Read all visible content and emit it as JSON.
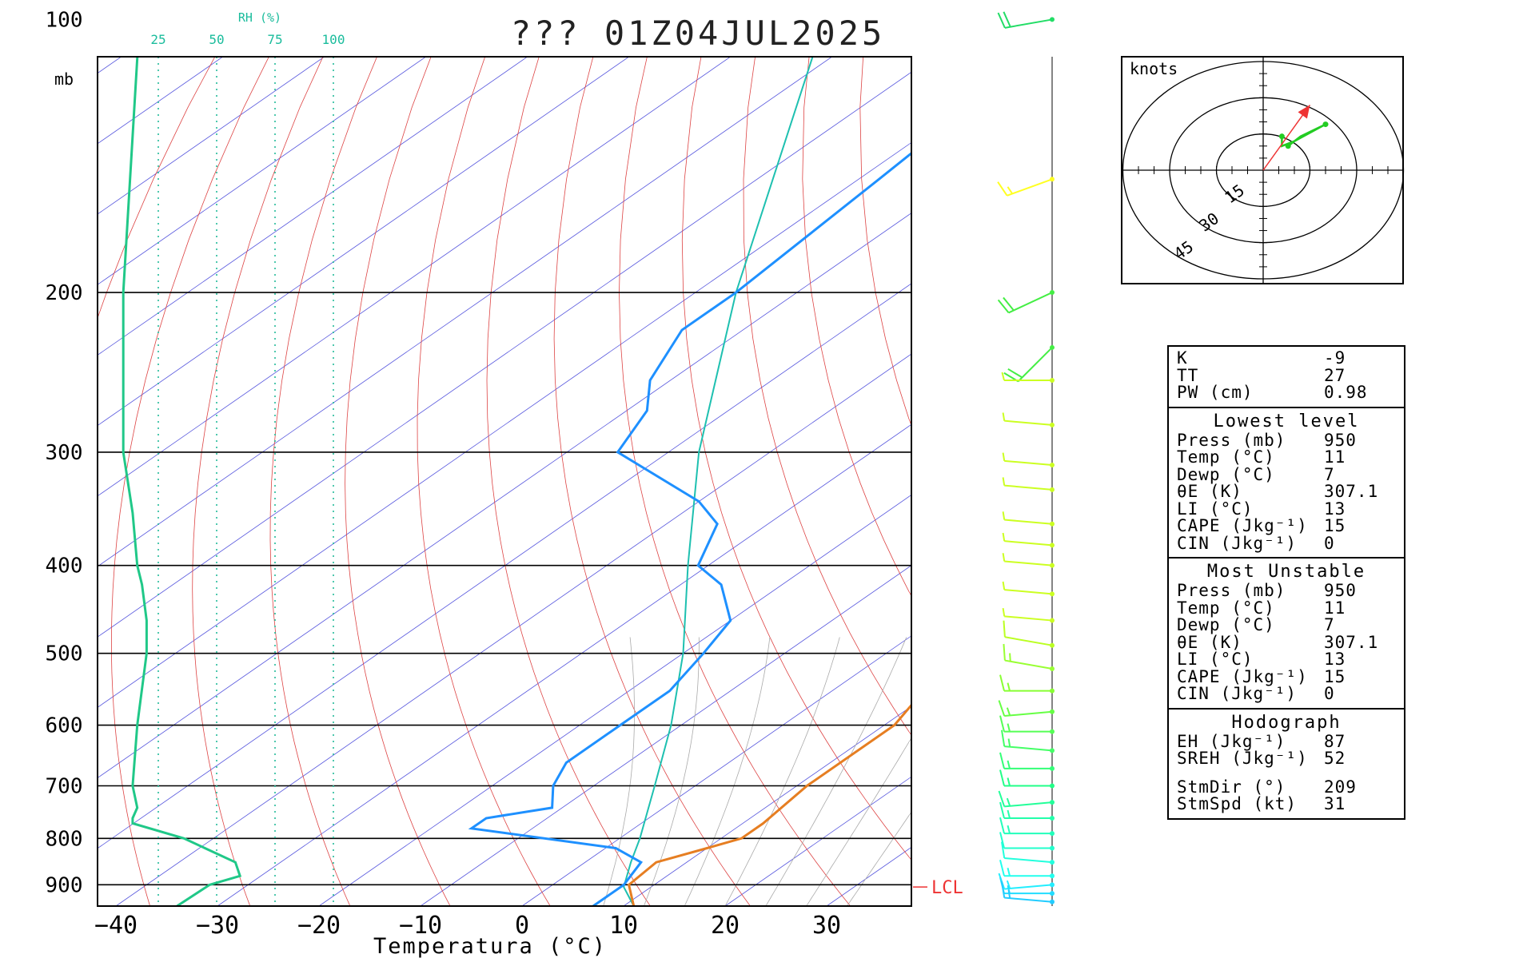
{
  "header": {
    "title": "??? 01Z04JUL2025"
  },
  "rh_scale": {
    "title": "RH (%)",
    "labels": [
      "25",
      "50",
      "75",
      "100"
    ]
  },
  "chart_data": {
    "type": "skew-t",
    "xlabel": "Temperatura (°C)",
    "pressure_unit": "mb",
    "pressure_range": [
      950,
      100
    ],
    "temperature_range": [
      -40,
      40
    ],
    "x_ticks": [
      -40,
      -30,
      -20,
      -10,
      0,
      10,
      20,
      30
    ],
    "pressure_ticks": [
      100,
      200,
      300,
      400,
      500,
      600,
      700,
      800,
      900
    ],
    "lcl_label": "LCL",
    "lcl_pressure": 905,
    "temperature_profile": [
      [
        950,
        11
      ],
      [
        900,
        7.5
      ],
      [
        850,
        7
      ],
      [
        820,
        10
      ],
      [
        800,
        12
      ],
      [
        770,
        12
      ],
      [
        700,
        11
      ],
      [
        600,
        11
      ],
      [
        550,
        9
      ],
      [
        500,
        5
      ],
      [
        450,
        -1
      ],
      [
        400,
        -8
      ],
      [
        350,
        -15
      ],
      [
        300,
        -22
      ],
      [
        270,
        -26
      ],
      [
        250,
        -31
      ],
      [
        220,
        -34
      ],
      [
        200,
        -38
      ],
      [
        150,
        -50
      ],
      [
        100,
        -63
      ]
    ],
    "dewpoint_profile": [
      [
        950,
        7
      ],
      [
        900,
        7
      ],
      [
        850,
        5.5
      ],
      [
        820,
        1
      ],
      [
        780,
        -16
      ],
      [
        760,
        -16
      ],
      [
        740,
        -11
      ],
      [
        700,
        -14
      ],
      [
        660,
        -16
      ],
      [
        600,
        -16
      ],
      [
        550,
        -16
      ],
      [
        500,
        -18
      ],
      [
        460,
        -20
      ],
      [
        420,
        -26
      ],
      [
        400,
        -31
      ],
      [
        360,
        -35
      ],
      [
        340,
        -40
      ],
      [
        300,
        -55
      ],
      [
        270,
        -58
      ],
      [
        250,
        -62
      ],
      [
        220,
        -66
      ],
      [
        200,
        -66
      ],
      [
        150,
        -68
      ],
      [
        100,
        -71
      ]
    ],
    "parcel_profile": [
      [
        950,
        11
      ],
      [
        905,
        7.3
      ],
      [
        850,
        4.5
      ],
      [
        800,
        2
      ],
      [
        700,
        -4
      ],
      [
        600,
        -11
      ],
      [
        500,
        -20
      ],
      [
        400,
        -32
      ],
      [
        300,
        -47
      ],
      [
        200,
        -66
      ],
      [
        100,
        -96
      ]
    ],
    "rh_profile": [
      [
        950,
        33
      ],
      [
        900,
        47
      ],
      [
        880,
        60
      ],
      [
        850,
        58
      ],
      [
        800,
        36
      ],
      [
        770,
        14
      ],
      [
        760,
        14
      ],
      [
        740,
        16
      ],
      [
        700,
        14
      ],
      [
        600,
        16
      ],
      [
        500,
        20
      ],
      [
        460,
        20
      ],
      [
        420,
        18
      ],
      [
        400,
        16
      ],
      [
        350,
        14
      ],
      [
        300,
        10
      ],
      [
        200,
        10
      ],
      [
        100,
        17
      ]
    ],
    "wind_profile": [
      {
        "p": 100,
        "dir": 260,
        "spd": 20,
        "color": "#22dd66"
      },
      {
        "p": 150,
        "dir": 250,
        "spd": 15,
        "color": "#ffff22"
      },
      {
        "p": 200,
        "dir": 245,
        "spd": 20,
        "color": "#44ee44"
      },
      {
        "p": 230,
        "dir": 225,
        "spd": 20,
        "color": "#44ee44"
      },
      {
        "p": 250,
        "dir": 270,
        "spd": 5,
        "color": "#ccff22"
      },
      {
        "p": 280,
        "dir": 275,
        "spd": 5,
        "color": "#ccff22"
      },
      {
        "p": 310,
        "dir": 275,
        "spd": 5,
        "color": "#ccff22"
      },
      {
        "p": 330,
        "dir": 275,
        "spd": 5,
        "color": "#ccff22"
      },
      {
        "p": 360,
        "dir": 275,
        "spd": 5,
        "color": "#ccff22"
      },
      {
        "p": 380,
        "dir": 275,
        "spd": 5,
        "color": "#ccff22"
      },
      {
        "p": 400,
        "dir": 275,
        "spd": 5,
        "color": "#ccff22"
      },
      {
        "p": 430,
        "dir": 275,
        "spd": 5,
        "color": "#ccff22"
      },
      {
        "p": 460,
        "dir": 275,
        "spd": 5,
        "color": "#ccff22"
      },
      {
        "p": 490,
        "dir": 280,
        "spd": 10,
        "color": "#bbff22"
      },
      {
        "p": 520,
        "dir": 280,
        "spd": 15,
        "color": "#99ff33"
      },
      {
        "p": 550,
        "dir": 270,
        "spd": 15,
        "color": "#88ff33"
      },
      {
        "p": 580,
        "dir": 265,
        "spd": 15,
        "color": "#66ff44"
      },
      {
        "p": 610,
        "dir": 270,
        "spd": 15,
        "color": "#55ff55"
      },
      {
        "p": 640,
        "dir": 275,
        "spd": 15,
        "color": "#44ff66"
      },
      {
        "p": 670,
        "dir": 270,
        "spd": 15,
        "color": "#33ff77"
      },
      {
        "p": 700,
        "dir": 270,
        "spd": 15,
        "color": "#22ff88"
      },
      {
        "p": 730,
        "dir": 265,
        "spd": 15,
        "color": "#22ff99"
      },
      {
        "p": 760,
        "dir": 270,
        "spd": 15,
        "color": "#22ffaa"
      },
      {
        "p": 790,
        "dir": 270,
        "spd": 15,
        "color": "#22ffbb"
      },
      {
        "p": 820,
        "dir": 270,
        "spd": 10,
        "color": "#22ffcc"
      },
      {
        "p": 850,
        "dir": 275,
        "spd": 10,
        "color": "#22ffdd"
      },
      {
        "p": 880,
        "dir": 270,
        "spd": 15,
        "color": "#22ffee"
      },
      {
        "p": 900,
        "dir": 265,
        "spd": 15,
        "color": "#22eeff"
      },
      {
        "p": 920,
        "dir": 270,
        "spd": 15,
        "color": "#22ddff"
      },
      {
        "p": 940,
        "dir": 275,
        "spd": 15,
        "color": "#22ccff"
      }
    ]
  },
  "hodograph": {
    "unit_label": "knots",
    "ring_labels": [
      "15",
      "30",
      "45"
    ],
    "ring_values": [
      15,
      30,
      45
    ],
    "trace_uv": [
      [
        8,
        10
      ],
      [
        12,
        14
      ],
      [
        20,
        19
      ],
      [
        10,
        12
      ],
      [
        6,
        10
      ],
      [
        6,
        14
      ]
    ],
    "storm_motion_uv": [
      15,
      27
    ]
  },
  "indices": {
    "top": [
      {
        "label": "K",
        "value": "-9"
      },
      {
        "label": "TT",
        "value": "27"
      },
      {
        "label": "PW (cm)",
        "value": "0.98"
      }
    ],
    "lowest_level": {
      "title": "Lowest level",
      "rows": [
        {
          "label": "Press (mb)",
          "value": "950"
        },
        {
          "label": "Temp (°C)",
          "value": "11"
        },
        {
          "label": "Dewp (°C)",
          "value": "7"
        },
        {
          "label": "θE (K)",
          "value": "307.1"
        },
        {
          "label": "LI (°C)",
          "value": "13"
        },
        {
          "label": "CAPE (Jkg⁻¹)",
          "value": "15"
        },
        {
          "label": "CIN (Jkg⁻¹)",
          "value": "0"
        }
      ]
    },
    "most_unstable": {
      "title": "Most Unstable",
      "rows": [
        {
          "label": "Press (mb)",
          "value": "950"
        },
        {
          "label": "Temp (°C)",
          "value": "11"
        },
        {
          "label": "Dewp (°C)",
          "value": "7"
        },
        {
          "label": "θE (K)",
          "value": "307.1"
        },
        {
          "label": "LI (°C)",
          "value": "13"
        },
        {
          "label": "CAPE (Jkg⁻¹)",
          "value": "15"
        },
        {
          "label": "CIN (Jkg⁻¹)",
          "value": "0"
        }
      ]
    },
    "hodograph_section": {
      "title": "Hodograph",
      "rows": [
        {
          "label": "EH (Jkg⁻¹)",
          "value": "87"
        },
        {
          "label": "SREH (Jkg⁻¹)",
          "value": "52"
        }
      ],
      "rows2": [
        {
          "label": "StmDir (°)",
          "value": "209"
        },
        {
          "label": "StmSpd (kt)",
          "value": "31"
        }
      ]
    }
  },
  "colors": {
    "temperature": "#e67e22",
    "dewpoint": "#1e90ff",
    "parcel": "#1ec0b0",
    "rh": "#20c888",
    "isotherm": "#5555dd",
    "dry_adiabat": "#dd4444",
    "moist_adiabat": "#aaaaaa",
    "hodo_trace": "#22cc22",
    "storm_motion": "#ee3333"
  }
}
